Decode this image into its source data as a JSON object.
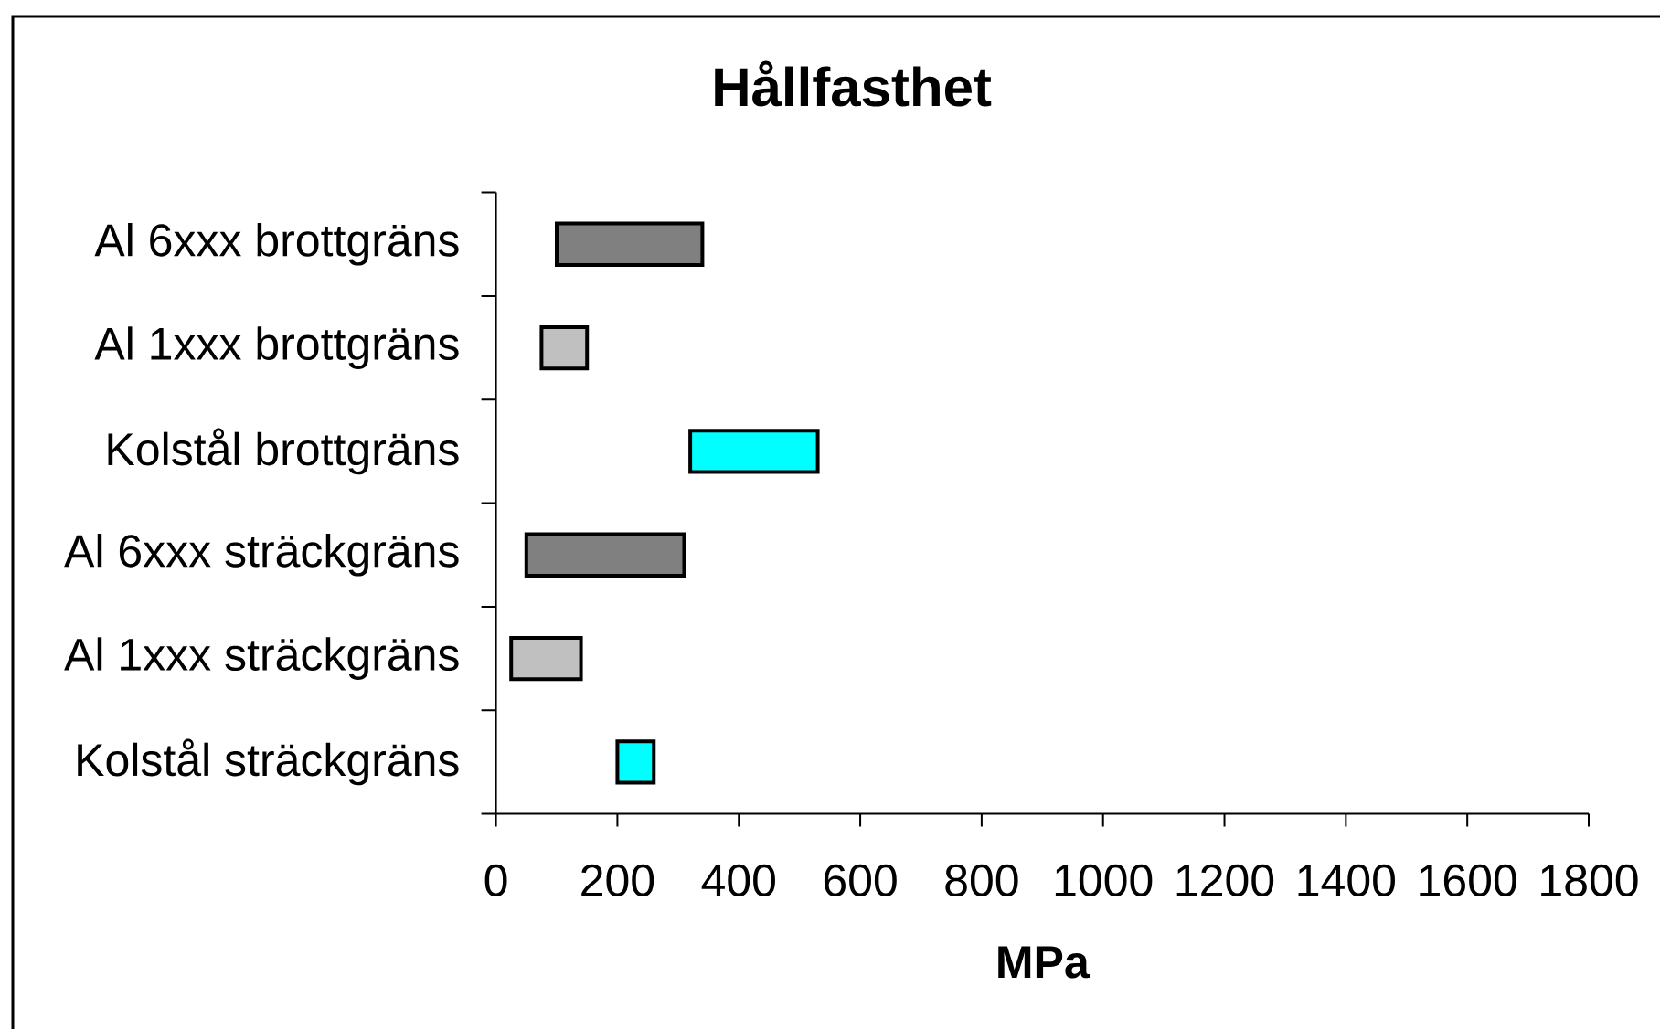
{
  "chart_data": {
    "type": "bar",
    "orientation": "horizontal",
    "title": "Hållfasthet",
    "xlabel": "MPa",
    "categories": [
      "Al 6xxx brottgräns",
      "Al 1xxx brottgräns",
      "Kolstål brottgräns",
      "Al 6xxx sträckgräns",
      "Al 1xxx sträckgräns",
      "Kolstål sträckgräns"
    ],
    "base": [
      100,
      75,
      320,
      50,
      25,
      200
    ],
    "values": [
      240,
      75,
      210,
      260,
      115,
      60
    ],
    "colors": [
      "#808080",
      "#c0c0c0",
      "#00ffff",
      "#808080",
      "#c0c0c0",
      "#00ffff"
    ],
    "xlim": [
      0,
      1800
    ],
    "xticks": [
      0,
      200,
      400,
      600,
      800,
      1000,
      1200,
      1400,
      1600,
      1800
    ]
  }
}
